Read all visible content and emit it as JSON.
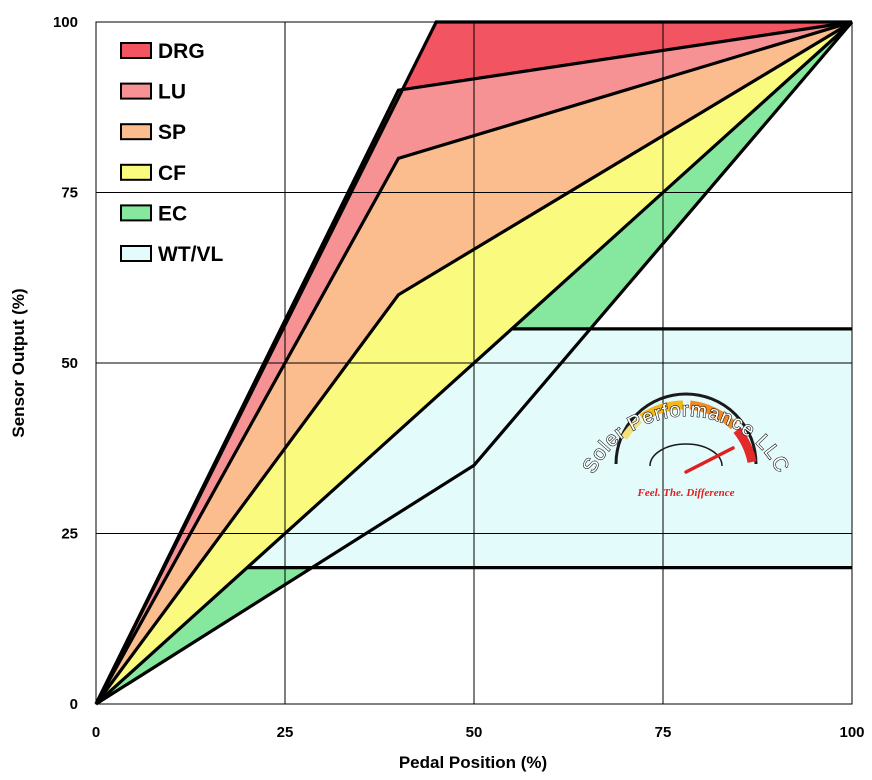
{
  "chart_data": {
    "type": "area",
    "xlabel": "Pedal Position (%)",
    "ylabel": "Sensor Output (%)",
    "xlim": [
      0,
      100
    ],
    "ylim": [
      0,
      100
    ],
    "xticks": [
      "0",
      "25",
      "50",
      "75",
      "100"
    ],
    "yticks": [
      "0",
      "25",
      "50",
      "75",
      "100"
    ],
    "grid": true,
    "legend_position": "top-left",
    "series": [
      {
        "name": "DRG",
        "color": "#f25561",
        "upper": [
          [
            0,
            0
          ],
          [
            45,
            100
          ],
          [
            100,
            100
          ]
        ],
        "lower": [
          [
            0,
            0
          ],
          [
            40,
            90
          ],
          [
            100,
            100
          ]
        ]
      },
      {
        "name": "LU",
        "color": "#f79294",
        "upper": [
          [
            0,
            0
          ],
          [
            40,
            90
          ],
          [
            100,
            100
          ]
        ],
        "lower": [
          [
            0,
            0
          ],
          [
            40,
            80
          ],
          [
            100,
            100
          ]
        ]
      },
      {
        "name": "SP",
        "color": "#fbbd8e",
        "upper": [
          [
            0,
            0
          ],
          [
            40,
            80
          ],
          [
            100,
            100
          ]
        ],
        "lower": [
          [
            0,
            0
          ],
          [
            40,
            60
          ],
          [
            100,
            100
          ]
        ]
      },
      {
        "name": "CF",
        "color": "#fafa7e",
        "upper": [
          [
            0,
            0
          ],
          [
            40,
            60
          ],
          [
            100,
            100
          ]
        ],
        "lower": [
          [
            0,
            0
          ],
          [
            100,
            100
          ]
        ]
      },
      {
        "name": "EC",
        "color": "#86e89f",
        "upper": [
          [
            0,
            0
          ],
          [
            100,
            100
          ]
        ],
        "lower": [
          [
            0,
            0
          ],
          [
            50,
            35
          ],
          [
            100,
            100
          ]
        ]
      },
      {
        "name": "WT/VL",
        "color": "#e4fbfb",
        "upper": [
          [
            55,
            55
          ],
          [
            100,
            55
          ]
        ],
        "lower": [
          [
            20,
            20
          ],
          [
            100,
            20
          ]
        ]
      }
    ]
  },
  "logo": {
    "name": "Soler Performance LLC",
    "tagline": "Feel. The. Difference"
  }
}
